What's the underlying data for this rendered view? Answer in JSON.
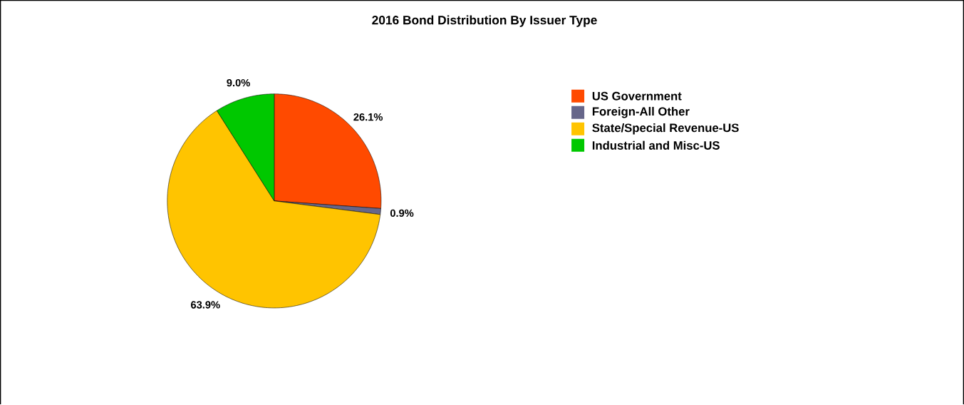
{
  "chart_data": {
    "type": "pie",
    "title": "2016 Bond Distribution By Issuer Type",
    "categories": [
      "US Government",
      "Foreign-All Other",
      "State/Special Revenue-US",
      "Industrial and Misc-US"
    ],
    "values": [
      26.1,
      0.9,
      63.9,
      9.0
    ],
    "value_labels": [
      "26.1%",
      "0.9%",
      "63.9%",
      "9.0%"
    ],
    "colors": [
      "#ff4a00",
      "#66668a",
      "#ffc400",
      "#00c800"
    ],
    "legend": "top right"
  }
}
